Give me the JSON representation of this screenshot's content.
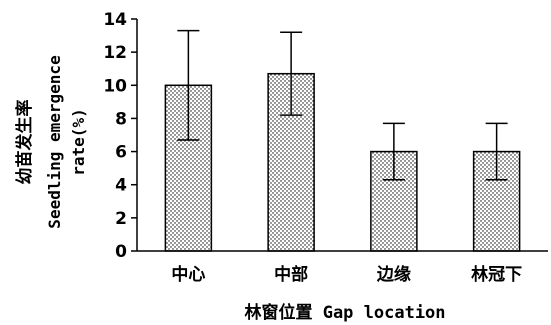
{
  "chart_data": {
    "type": "bar",
    "categories": [
      "中心",
      "中部",
      "边缘",
      "林冠下"
    ],
    "values": [
      10.0,
      10.7,
      6.0,
      6.0
    ],
    "error": [
      3.3,
      2.5,
      1.7,
      1.7
    ],
    "ylim": [
      0,
      14
    ],
    "yticks": [
      "0",
      "2",
      "4",
      "6",
      "8",
      "10",
      "12",
      "14"
    ],
    "ylabel_lines": [
      "幼苗发生率",
      "Seedling emergence",
      "rate(%)"
    ],
    "xlabel": "林窗位置 Gap location",
    "grid": false,
    "bar_pattern": "dotted"
  }
}
